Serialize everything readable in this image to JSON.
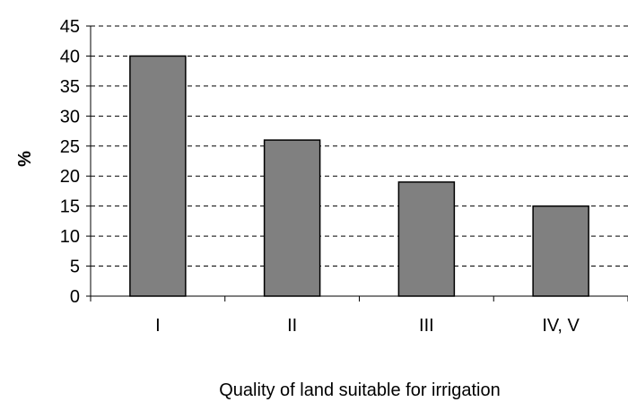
{
  "chart_data": {
    "type": "bar",
    "title": "",
    "xlabel": "Quality of land suitable for irrigation",
    "ylabel": "%",
    "categories": [
      "I",
      "II",
      "III",
      "IV, V"
    ],
    "values": [
      40,
      26,
      19,
      15
    ],
    "ylim": [
      0,
      45
    ],
    "ytick_step": 5,
    "grid": true,
    "legend": "none",
    "bar_color": "#808080",
    "bar_edge_color": "#000000",
    "gridline_style": "dashed"
  }
}
